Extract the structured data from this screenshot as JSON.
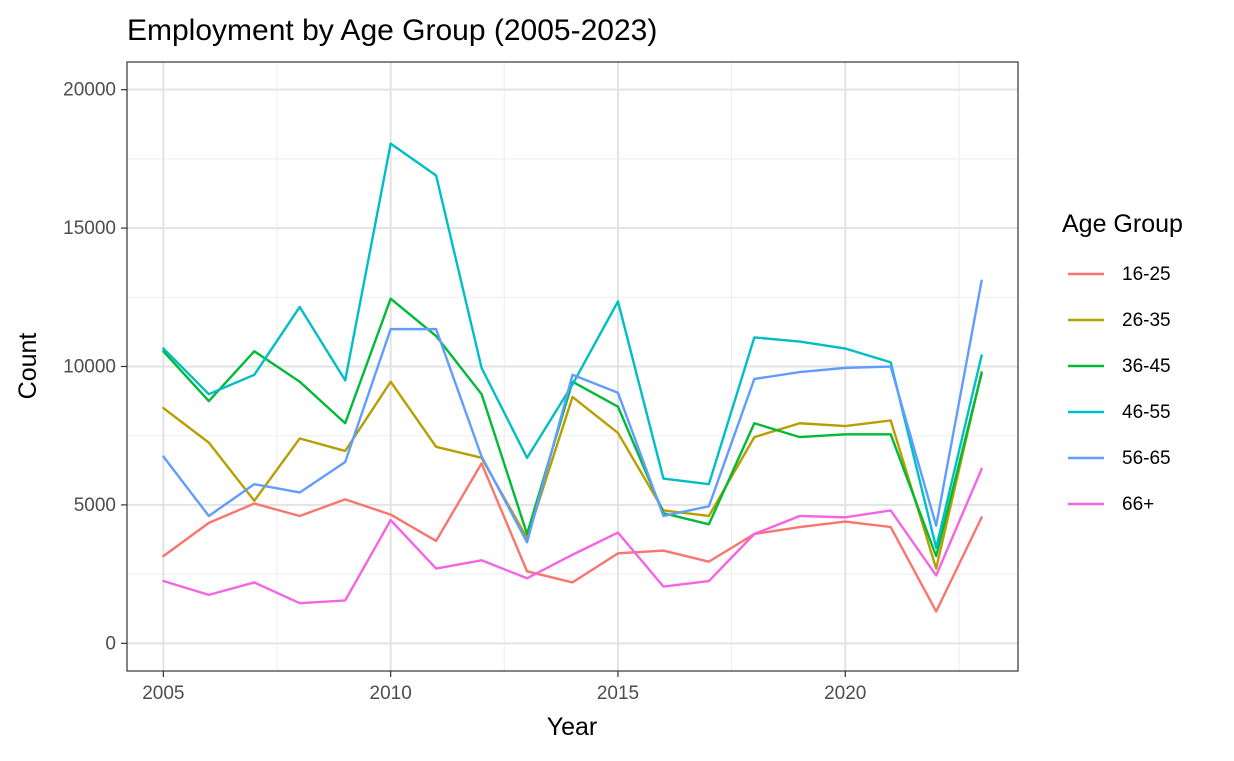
{
  "chart_data": {
    "type": "line",
    "title": "Employment by Age Group (2005-2023)",
    "xlabel": "Year",
    "ylabel": "Count",
    "x": [
      2005,
      2006,
      2007,
      2008,
      2009,
      2010,
      2011,
      2012,
      2013,
      2014,
      2015,
      2016,
      2017,
      2018,
      2019,
      2020,
      2021,
      2022,
      2023
    ],
    "xlim": [
      2004.2,
      2023.8
    ],
    "ylim": [
      -1000,
      21000
    ],
    "x_ticks": [
      2005,
      2010,
      2015,
      2020
    ],
    "x_tick_labels": [
      "2005",
      "2010",
      "2015",
      "2020"
    ],
    "x_minor_ticks": [
      2007.5,
      2012.5,
      2017.5,
      2022.5
    ],
    "y_ticks": [
      0,
      5000,
      10000,
      15000,
      20000
    ],
    "y_tick_labels": [
      "0",
      "5000",
      "10000",
      "15000",
      "20000"
    ],
    "y_minor_ticks": [
      2500,
      7500,
      12500,
      17500
    ],
    "grid": true,
    "legend": {
      "title": "Age Group",
      "position": "right"
    },
    "series": [
      {
        "name": "16-25",
        "color": "#F8766D",
        "values": [
          3150,
          4350,
          5050,
          4600,
          5200,
          4650,
          3700,
          6500,
          2600,
          2200,
          3250,
          3350,
          2950,
          3950,
          4200,
          4400,
          4200,
          1150,
          4550
        ]
      },
      {
        "name": "26-35",
        "color": "#B79F00",
        "values": [
          8500,
          7250,
          5150,
          7400,
          6950,
          9450,
          7100,
          6700,
          3800,
          8900,
          7600,
          4800,
          4600,
          7450,
          7950,
          7850,
          8050,
          2700,
          9800
        ]
      },
      {
        "name": "36-45",
        "color": "#00BA38",
        "values": [
          10550,
          8750,
          10550,
          9450,
          7950,
          12450,
          11100,
          9000,
          3950,
          9450,
          8550,
          4700,
          4300,
          7950,
          7450,
          7550,
          7550,
          3150,
          9750
        ]
      },
      {
        "name": "46-55",
        "color": "#00BFC4",
        "values": [
          10650,
          9000,
          9700,
          12150,
          9500,
          18050,
          16900,
          9950,
          6700,
          9350,
          12350,
          5950,
          5750,
          11050,
          10900,
          10650,
          10150,
          3450,
          10400
        ]
      },
      {
        "name": "56-65",
        "color": "#619CFF",
        "values": [
          6750,
          4600,
          5750,
          5450,
          6550,
          11350,
          11350,
          6750,
          3650,
          9700,
          9050,
          4600,
          4950,
          9550,
          9800,
          9950,
          10000,
          4250,
          13100
        ]
      },
      {
        "name": "66+",
        "color": "#F564E3",
        "values": [
          2250,
          1750,
          2200,
          1450,
          1550,
          4450,
          2700,
          3000,
          2350,
          3200,
          4000,
          2050,
          2250,
          3950,
          4600,
          4550,
          4800,
          2450,
          6300
        ]
      }
    ]
  }
}
